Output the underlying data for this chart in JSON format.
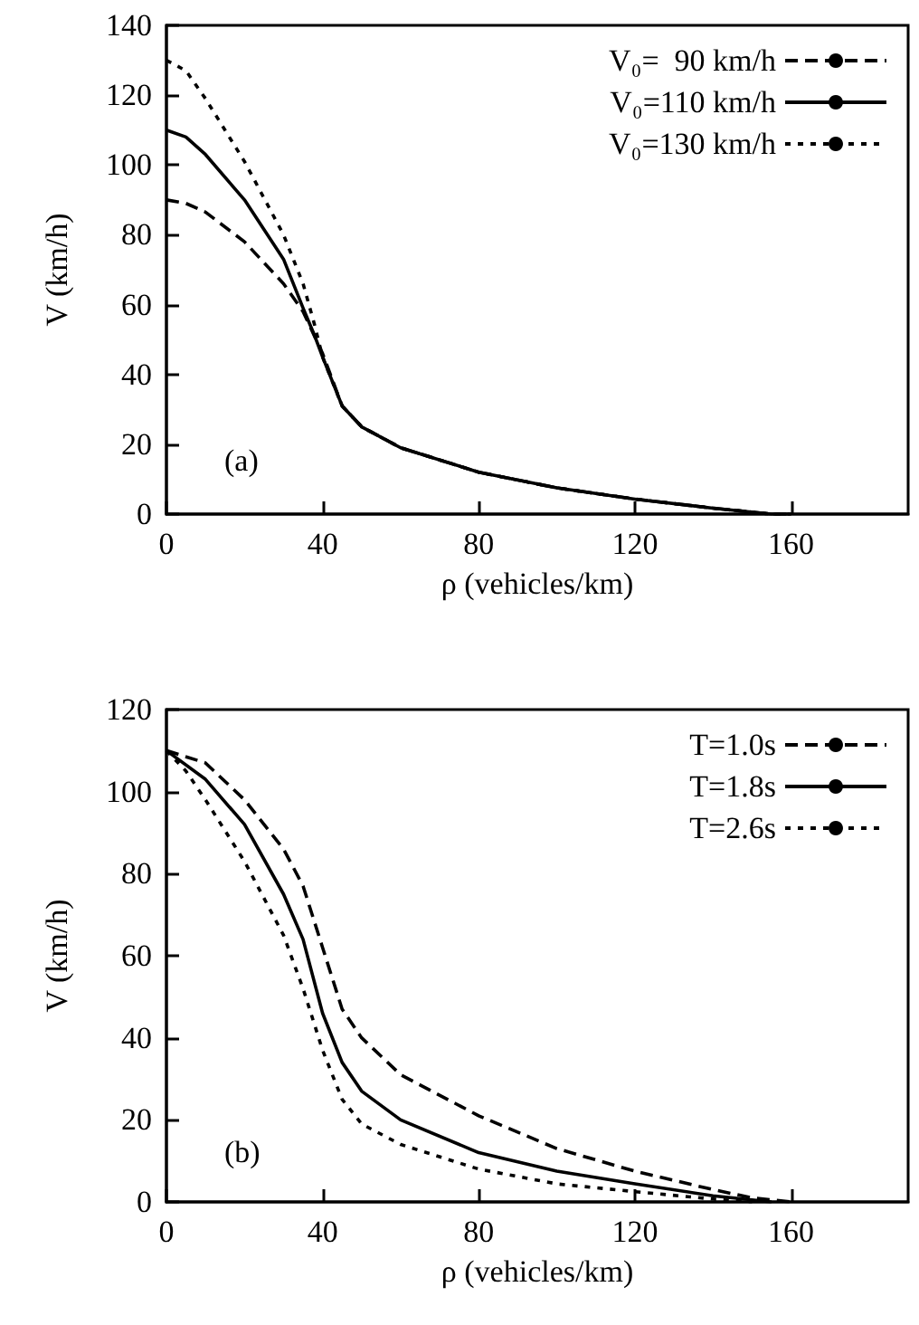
{
  "chart_data": [
    {
      "type": "line",
      "xlabel": "ρ (vehicles/km)",
      "ylabel": "V (km/h)",
      "annotations": [
        "(a)"
      ],
      "xlim": [
        0,
        190
      ],
      "xticks": [
        0,
        40,
        80,
        120,
        160
      ],
      "ylim": [
        0,
        140
      ],
      "yticks": [
        0,
        20,
        40,
        60,
        80,
        100,
        120,
        140
      ],
      "grid": false,
      "legend": "top right",
      "series": [
        {
          "name": "V₀=  90 km/h",
          "color": "#000000",
          "line_style": "dashed",
          "x": [
            0,
            5,
            10,
            20,
            30,
            35,
            40,
            45,
            50,
            60,
            80,
            100,
            120,
            140,
            155,
            160
          ],
          "values": [
            90,
            89,
            86.5,
            78,
            66,
            58,
            46,
            31,
            25,
            19,
            12,
            7.5,
            4.3,
            1.7,
            0,
            0
          ]
        },
        {
          "name": "V₀=110 km/h",
          "color": "#000000",
          "line_style": "solid",
          "x": [
            0,
            5,
            10,
            20,
            30,
            35,
            38,
            40,
            45,
            50,
            60,
            80,
            100,
            120,
            140,
            155,
            160
          ],
          "values": [
            110,
            108,
            103,
            90,
            73,
            59,
            51,
            45,
            31,
            25,
            19,
            12,
            7.5,
            4.3,
            1.7,
            0,
            0
          ]
        },
        {
          "name": "V₀=130 km/h",
          "color": "#000000",
          "line_style": "dotted",
          "x": [
            0,
            5,
            10,
            20,
            30,
            35,
            38,
            40,
            45,
            50,
            60,
            80,
            100,
            120,
            140,
            155,
            160
          ],
          "values": [
            130,
            127,
            119,
            101,
            80,
            66,
            54,
            45,
            31,
            25,
            19,
            12,
            7.5,
            4.3,
            1.7,
            0,
            0
          ]
        }
      ]
    },
    {
      "type": "line",
      "xlabel": "ρ (vehicles/km)",
      "ylabel": "V (km/h)",
      "annotations": [
        "(b)"
      ],
      "xlim": [
        0,
        190
      ],
      "xticks": [
        0,
        40,
        80,
        120,
        160
      ],
      "ylim": [
        0,
        120
      ],
      "yticks": [
        0,
        20,
        40,
        60,
        80,
        100,
        120
      ],
      "grid": false,
      "legend": "top right",
      "series": [
        {
          "name": "T=1.0s",
          "color": "#000000",
          "line_style": "dashed",
          "x": [
            0,
            10,
            20,
            30,
            35,
            40,
            45,
            50,
            60,
            80,
            100,
            120,
            140,
            150,
            160
          ],
          "values": [
            110,
            107,
            98,
            86,
            77,
            62,
            47,
            40,
            31,
            21,
            13,
            7.5,
            3,
            1,
            0
          ]
        },
        {
          "name": "T=1.8s",
          "color": "#000000",
          "line_style": "solid",
          "x": [
            0,
            10,
            20,
            30,
            35,
            40,
            45,
            50,
            60,
            80,
            100,
            120,
            140,
            155
          ],
          "values": [
            110,
            103,
            92,
            75,
            64,
            46,
            34,
            27,
            20,
            12,
            7.5,
            4.4,
            1.5,
            0
          ]
        },
        {
          "name": "T=2.6s",
          "color": "#000000",
          "line_style": "dotted",
          "x": [
            0,
            5,
            10,
            20,
            30,
            35,
            40,
            45,
            50,
            60,
            80,
            100,
            120,
            140,
            150
          ],
          "values": [
            110,
            105,
            98,
            83,
            65,
            52,
            37,
            25,
            19,
            14,
            8,
            4.4,
            2.5,
            0.7,
            0
          ]
        }
      ]
    }
  ]
}
